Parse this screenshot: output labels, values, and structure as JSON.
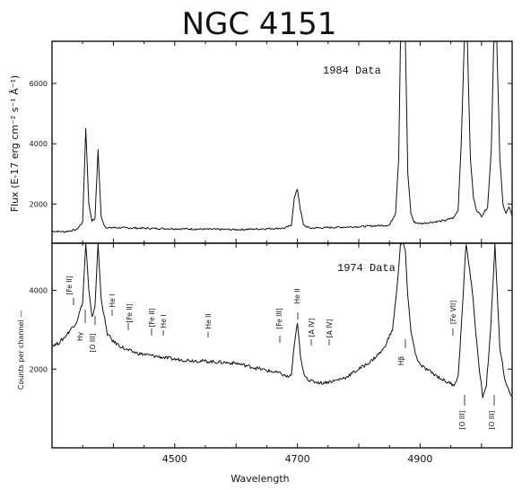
{
  "title": "NGC 4151",
  "chart_data": [
    {
      "type": "line",
      "label": "1984 Data",
      "ylabel": "Flux (E-17 erg cm⁻² s⁻¹ Å⁻¹)",
      "xlim": [
        4300,
        5050
      ],
      "ylim": [
        700,
        7400
      ],
      "yticks": [
        2000,
        4000,
        6000
      ],
      "x": [
        4300,
        4320,
        4340,
        4350,
        4355,
        4360,
        4365,
        4370,
        4375,
        4380,
        4385,
        4390,
        4400,
        4440,
        4500,
        4600,
        4680,
        4690,
        4695,
        4700,
        4705,
        4710,
        4720,
        4800,
        4850,
        4860,
        4865,
        4868,
        4872,
        4876,
        4880,
        4885,
        4890,
        4900,
        4920,
        4940,
        4955,
        4962,
        4967,
        4972,
        4977,
        4982,
        4987,
        4992,
        5000,
        5010,
        5016,
        5020,
        5025,
        5030,
        5035,
        5040,
        5045,
        5050
      ],
      "values": [
        1100,
        1080,
        1150,
        1400,
        4500,
        2000,
        1450,
        1500,
        3800,
        1600,
        1300,
        1200,
        1220,
        1200,
        1180,
        1150,
        1200,
        1300,
        2200,
        2500,
        1800,
        1300,
        1200,
        1250,
        1300,
        1700,
        3500,
        7400,
        7400,
        7400,
        3000,
        1700,
        1400,
        1350,
        1400,
        1450,
        1550,
        1800,
        4000,
        7400,
        7400,
        3500,
        2200,
        1800,
        1600,
        1900,
        3800,
        7400,
        7400,
        3500,
        2000,
        1700,
        1900,
        1600
      ]
    },
    {
      "type": "line",
      "label": "1974 Data",
      "ylabel": "Counts per channel —",
      "xlabel": "Wavelength",
      "xlim": [
        4300,
        5050
      ],
      "xticks": [
        4500,
        4700,
        4900
      ],
      "ylim": [
        0,
        5200
      ],
      "yticks": [
        2000,
        4000
      ],
      "x": [
        4300,
        4310,
        4320,
        4330,
        4340,
        4350,
        4355,
        4360,
        4365,
        4370,
        4375,
        4380,
        4390,
        4400,
        4420,
        4440,
        4460,
        4500,
        4550,
        4600,
        4640,
        4670,
        4685,
        4690,
        4695,
        4700,
        4705,
        4710,
        4720,
        4740,
        4760,
        4780,
        4800,
        4820,
        4840,
        4855,
        4862,
        4868,
        4872,
        4876,
        4880,
        4885,
        4892,
        4900,
        4920,
        4940,
        4955,
        4962,
        4968,
        4975,
        4985,
        4995,
        5002,
        5008,
        5015,
        5022,
        5030,
        5040,
        5050
      ],
      "values": [
        2600,
        2650,
        2800,
        3000,
        3200,
        3700,
        5200,
        4000,
        3300,
        3600,
        5200,
        3800,
        2900,
        2700,
        2500,
        2400,
        2350,
        2250,
        2200,
        2150,
        2000,
        1900,
        1800,
        1850,
        2600,
        3200,
        2300,
        1900,
        1700,
        1650,
        1700,
        1800,
        2000,
        2200,
        2500,
        3000,
        4000,
        5200,
        5200,
        5000,
        3800,
        3000,
        2400,
        2100,
        1900,
        1700,
        1600,
        1800,
        3300,
        5200,
        4000,
        2200,
        1300,
        1600,
        3000,
        5200,
        2500,
        1600,
        1300
      ]
    }
  ],
  "line_labels_1974": [
    "[Fe II]",
    "Hγ",
    "[O III]",
    "He I",
    "[Fe II]",
    "[Fe II]",
    "He I",
    "He II",
    "[Fe III]",
    "He II",
    "[A IV]",
    "[A IV]",
    "Hβ",
    "[Fe VII]",
    "[O III]",
    "[O III]"
  ]
}
